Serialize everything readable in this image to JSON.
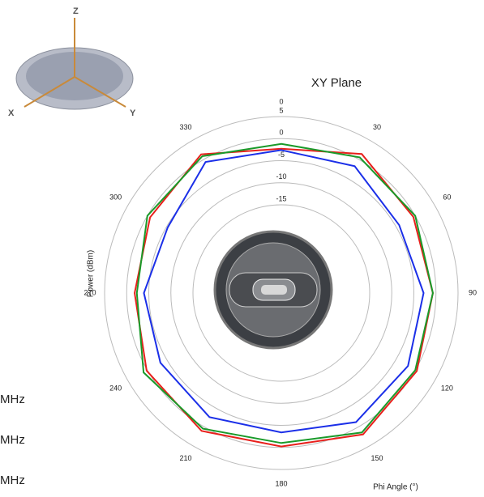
{
  "icon": {
    "labels": [
      "Z",
      "X",
      "Y"
    ]
  },
  "chart_data": {
    "type": "polar",
    "title": "XY Plane",
    "radial_label": "Power (dBm)",
    "angle_label": "Phi Angle (°)",
    "rlim": [
      -35,
      5
    ],
    "rticks": [
      -15,
      -10,
      -5,
      0,
      5
    ],
    "thetaticks": [
      0,
      30,
      60,
      90,
      120,
      150,
      180,
      210,
      240,
      270,
      300,
      330
    ],
    "theta": [
      0,
      30,
      60,
      90,
      120,
      150,
      180,
      210,
      240,
      270,
      300,
      330
    ],
    "series": [
      {
        "name": "MHz",
        "color": "#e8201c",
        "values": [
          -2.3,
          1.4,
          -0.5,
          -0.7,
          0.4,
          2,
          -0.2,
          1.1,
          0.2,
          -1.8,
          -0.7,
          1.3
        ]
      },
      {
        "name": "MHz",
        "color": "#1a9a2a",
        "values": [
          -1.2,
          0.5,
          0,
          -0.7,
          0,
          1.5,
          -1,
          0.5,
          1,
          -2.3,
          0,
          0.8
        ]
      },
      {
        "name": "MHz",
        "color": "#1b2fe8",
        "values": [
          -2.6,
          -1.8,
          -4.2,
          -2.8,
          -1.9,
          -1.2,
          -3.4,
          -2.5,
          -3.4,
          -3.9,
          -5.3,
          -0.7
        ]
      }
    ]
  }
}
